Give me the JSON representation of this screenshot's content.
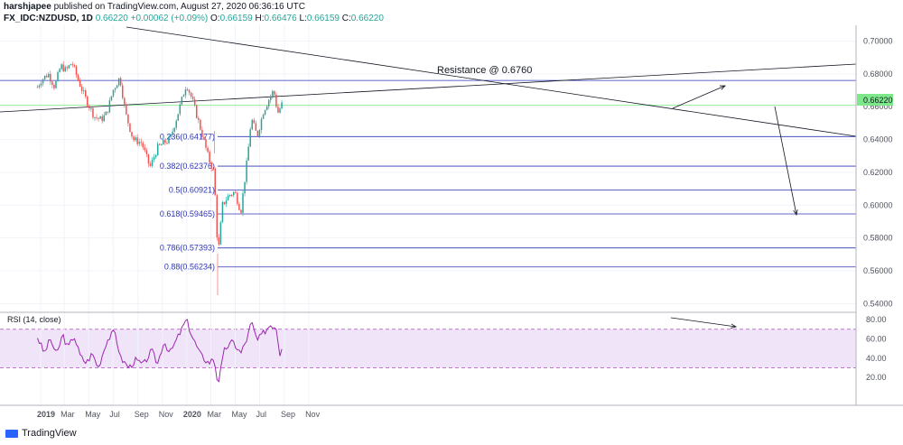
{
  "header": {
    "publisher": "harshjapee",
    "published_text": " published on TradingView.com, August 27, 2020 06:36:16 UTC",
    "symbol": "FX_IDC:NZDUSD, 1D",
    "last": "0.66220",
    "change": "+0.00062 (+0.09%)",
    "open_label": "O:",
    "open": "0.66159",
    "high_label": "H:",
    "high": "0.66476",
    "low_label": "L:",
    "low": "0.66159",
    "close_label": "C:",
    "close": "0.66220"
  },
  "footer": {
    "brand": "TradingView"
  },
  "colors": {
    "up": "#26a69a",
    "down": "#ef5350",
    "fib": "#2e35b8",
    "rsi_line": "#9c27b0",
    "rsi_band": "#e9d9f5",
    "price_label": "#7de88a"
  },
  "chart_data": [
    {
      "type": "candlestick",
      "title": "FX_IDC:NZDUSD, 1D",
      "x_ticks": [
        "2019",
        "Mar",
        "May",
        "Jul",
        "Sep",
        "Nov",
        "2020",
        "Mar",
        "May",
        "Jul",
        "Sep",
        "Nov"
      ],
      "y_ticks": [
        "0.70000",
        "0.68000",
        "0.66000",
        "0.64000",
        "0.62000",
        "0.60000",
        "0.58000",
        "0.56000",
        "0.54000"
      ],
      "ylim": [
        0.538,
        0.703
      ],
      "current_price": "0.66220",
      "closes_path": [
        [
          "2018-12-24",
          0.672
        ],
        [
          "2019-01-02",
          0.676
        ],
        [
          "2019-01-20",
          0.68
        ],
        [
          "2019-02-05",
          0.672
        ],
        [
          "2019-02-20",
          0.685
        ],
        [
          "2019-03-05",
          0.682
        ],
        [
          "2019-03-20",
          0.687
        ],
        [
          "2019-04-05",
          0.676
        ],
        [
          "2019-04-25",
          0.664
        ],
        [
          "2019-05-15",
          0.654
        ],
        [
          "2019-06-01",
          0.652
        ],
        [
          "2019-06-15",
          0.656
        ],
        [
          "2019-07-01",
          0.67
        ],
        [
          "2019-07-18",
          0.678
        ],
        [
          "2019-08-01",
          0.656
        ],
        [
          "2019-08-20",
          0.64
        ],
        [
          "2019-09-10",
          0.638
        ],
        [
          "2019-10-01",
          0.623
        ],
        [
          "2019-10-20",
          0.635
        ],
        [
          "2019-11-05",
          0.638
        ],
        [
          "2019-11-20",
          0.64
        ],
        [
          "2019-12-10",
          0.656
        ],
        [
          "2019-12-31",
          0.674
        ],
        [
          "2020-01-15",
          0.664
        ],
        [
          "2020-02-05",
          0.646
        ],
        [
          "2020-02-25",
          0.628
        ],
        [
          "2020-03-09",
          0.62
        ],
        [
          "2020-03-19",
          0.569
        ],
        [
          "2020-03-30",
          0.6
        ],
        [
          "2020-04-15",
          0.606
        ],
        [
          "2020-04-30",
          0.608
        ],
        [
          "2020-05-15",
          0.596
        ],
        [
          "2020-06-01",
          0.63
        ],
        [
          "2020-06-10",
          0.653
        ],
        [
          "2020-06-25",
          0.642
        ],
        [
          "2020-07-10",
          0.657
        ],
        [
          "2020-07-25",
          0.665
        ],
        [
          "2020-08-05",
          0.67
        ],
        [
          "2020-08-15",
          0.656
        ],
        [
          "2020-08-27",
          0.6622
        ]
      ],
      "levels": [
        {
          "label": "0.236(0.64177)",
          "value": 0.64177
        },
        {
          "label": "0.382(0.62376)",
          "value": 0.62376
        },
        {
          "label": "0.5(0.60921)",
          "value": 0.60921
        },
        {
          "label": "0.618(0.59465)",
          "value": 0.59465
        },
        {
          "label": "0.786(0.57393)",
          "value": 0.57393
        },
        {
          "label": "0.88(0.56234)",
          "value": 0.56234
        }
      ],
      "resistance": {
        "label": "Resistance @ 0.6760",
        "value": 0.676
      },
      "support_line": {
        "value": 0.661
      }
    },
    {
      "type": "line",
      "title": "RSI (14, close)",
      "y_ticks": [
        "80.00",
        "60.00",
        "40.00",
        "20.00"
      ],
      "ylim": [
        7,
        82
      ],
      "band": [
        30,
        70
      ],
      "rsi_path": [
        [
          "2018-12-24",
          62
        ],
        [
          "2019-01-10",
          45
        ],
        [
          "2019-01-25",
          60
        ],
        [
          "2019-02-10",
          43
        ],
        [
          "2019-02-25",
          65
        ],
        [
          "2019-03-10",
          50
        ],
        [
          "2019-03-25",
          64
        ],
        [
          "2019-04-10",
          42
        ],
        [
          "2019-04-25",
          35
        ],
        [
          "2019-05-10",
          45
        ],
        [
          "2019-05-25",
          30
        ],
        [
          "2019-06-15",
          58
        ],
        [
          "2019-07-05",
          68
        ],
        [
          "2019-07-20",
          40
        ],
        [
          "2019-08-10",
          30
        ],
        [
          "2019-08-25",
          38
        ],
        [
          "2019-09-15",
          33
        ],
        [
          "2019-10-05",
          48
        ],
        [
          "2019-10-20",
          34
        ],
        [
          "2019-11-05",
          58
        ],
        [
          "2019-11-20",
          45
        ],
        [
          "2019-12-10",
          62
        ],
        [
          "2019-12-31",
          80
        ],
        [
          "2020-01-15",
          62
        ],
        [
          "2020-02-05",
          43
        ],
        [
          "2020-02-25",
          35
        ],
        [
          "2020-03-09",
          40
        ],
        [
          "2020-03-19",
          13
        ],
        [
          "2020-04-05",
          50
        ],
        [
          "2020-04-25",
          57
        ],
        [
          "2020-05-15",
          45
        ],
        [
          "2020-06-01",
          62
        ],
        [
          "2020-06-10",
          78
        ],
        [
          "2020-06-25",
          58
        ],
        [
          "2020-07-10",
          66
        ],
        [
          "2020-07-28",
          75
        ],
        [
          "2020-08-12",
          72
        ],
        [
          "2020-08-20",
          44
        ],
        [
          "2020-08-27",
          55
        ]
      ]
    }
  ]
}
